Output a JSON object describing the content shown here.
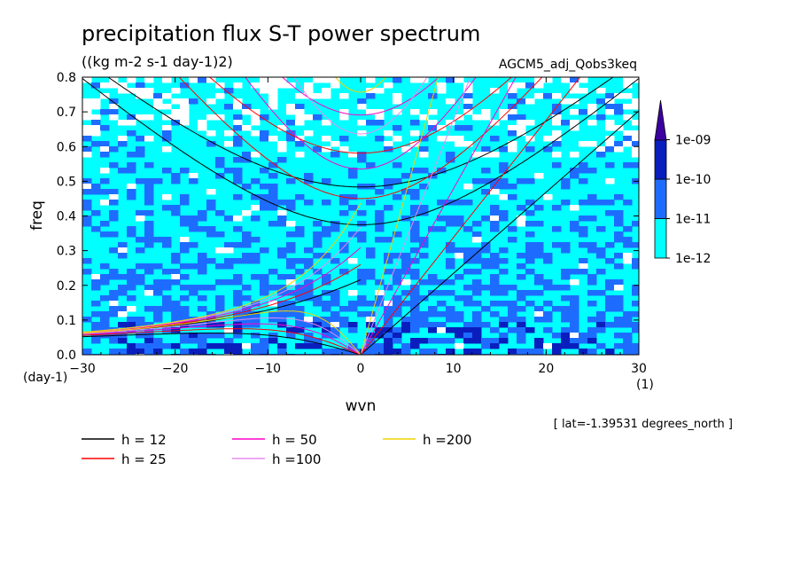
{
  "title": "precipitation flux S-T power spectrum",
  "units": "((kg m-2 s-1 day-1)2)",
  "dataset": "AGCM5_adj_Qobs3keq",
  "footnote": "[ lat=-1.39531 degrees_north ]",
  "chart_data": {
    "type": "heatmap",
    "xlabel": "wvn",
    "ylabel": "freq",
    "x_unit": "(1)",
    "y_unit": "(day-1)",
    "xlim": [
      -30,
      30
    ],
    "ylim": [
      0,
      0.8
    ],
    "x_ticks": [
      "-30",
      "-20",
      "-10",
      "0",
      "10",
      "20",
      "30"
    ],
    "y_ticks": [
      "0.0",
      "0.1",
      "0.2",
      "0.3",
      "0.4",
      "0.5",
      "0.6",
      "0.7",
      "0.8"
    ],
    "colorbar": {
      "levels": [
        "1e-12",
        "1e-11",
        "1e-10",
        "1e-09"
      ],
      "colors": [
        "#ffffff",
        "#00ffff",
        "#1e6cff",
        "#0a1ebe",
        "#3c00a0"
      ]
    },
    "dispersion_curves": [
      {
        "label": "h = 12",
        "h": 12,
        "color": "#000000"
      },
      {
        "label": "h = 25",
        "h": 25,
        "color": "#ff0000"
      },
      {
        "label": "h = 50",
        "h": 50,
        "color": "#ff00c8"
      },
      {
        "label": "h =100",
        "h": 100,
        "color": "#e68cf0"
      },
      {
        "label": "h =200",
        "h": 200,
        "color": "#f0d200"
      }
    ]
  }
}
